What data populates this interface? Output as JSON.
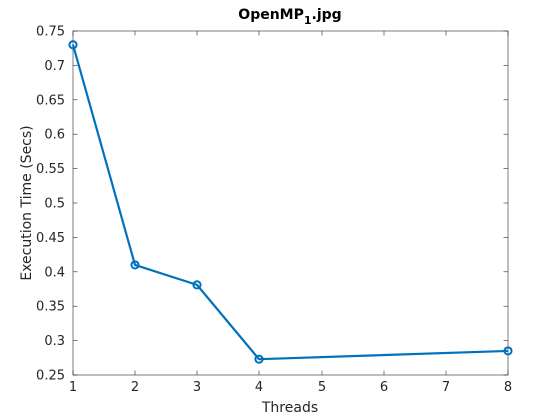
{
  "chart_data": {
    "type": "line",
    "title": "OpenMP",
    "title_subscript": "1",
    "title_suffix": ".jpg",
    "xlabel": "Threads",
    "ylabel": "Execution Time (Secs)",
    "x_ticks": [
      "1",
      "2",
      "3",
      "4",
      "5",
      "6",
      "7",
      "8"
    ],
    "y_ticks": [
      "0.25",
      "0.3",
      "0.35",
      "0.4",
      "0.45",
      "0.5",
      "0.55",
      "0.6",
      "0.65",
      "0.7",
      "0.75"
    ],
    "xlim": [
      1,
      8
    ],
    "ylim": [
      0.25,
      0.75
    ],
    "grid": false,
    "series": [
      {
        "color": "#0072BD",
        "marker": "circle",
        "x": [
          1,
          2,
          3,
          4,
          8
        ],
        "y": [
          0.73,
          0.41,
          0.381,
          0.273,
          0.285
        ]
      }
    ],
    "colors": {
      "axis": "#262626",
      "line": "#0072BD"
    }
  }
}
